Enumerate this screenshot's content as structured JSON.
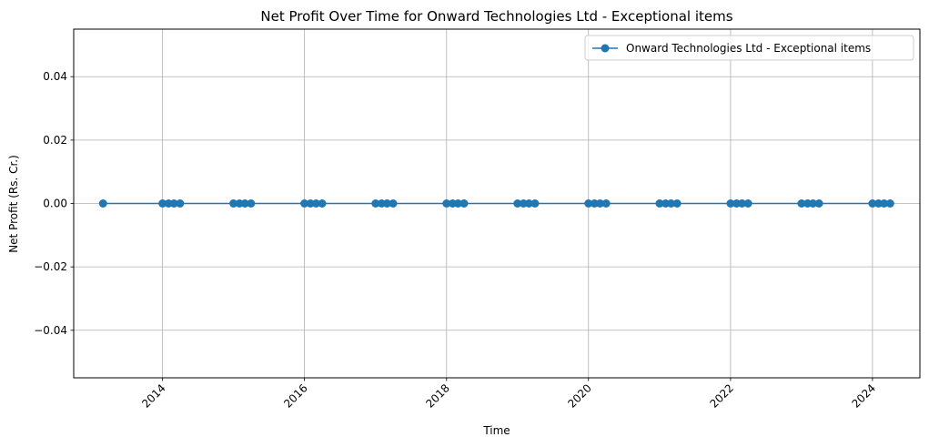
{
  "chart_data": {
    "type": "line",
    "title": "Net Profit Over Time for Onward Technologies Ltd - Exceptional items",
    "xlabel": "Time",
    "ylabel": "Net Profit (Rs. Cr.)",
    "xlim": [
      "2012-10-01",
      "2024-09-01"
    ],
    "ylim": [
      -0.055,
      0.055
    ],
    "x_ticks": [
      "2014",
      "2016",
      "2018",
      "2020",
      "2022",
      "2024"
    ],
    "y_ticks": [
      "−0.04",
      "−0.02",
      "0.00",
      "0.02",
      "0.04"
    ],
    "y_tick_values": [
      -0.04,
      -0.02,
      0.0,
      0.02,
      0.04
    ],
    "grid": true,
    "legend_position": "top-right",
    "color": "#1f77b4",
    "series": [
      {
        "name": "Onward Technologies Ltd - Exceptional items",
        "x": [
          "2013-03-01",
          "2014-01-01",
          "2014-02-01",
          "2014-03-01",
          "2014-04-01",
          "2015-01-01",
          "2015-02-01",
          "2015-03-01",
          "2015-04-01",
          "2016-01-01",
          "2016-02-01",
          "2016-03-01",
          "2016-04-01",
          "2017-01-01",
          "2017-02-01",
          "2017-03-01",
          "2017-04-01",
          "2018-01-01",
          "2018-02-01",
          "2018-03-01",
          "2018-04-01",
          "2019-01-01",
          "2019-02-01",
          "2019-03-01",
          "2019-04-01",
          "2020-01-01",
          "2020-02-01",
          "2020-03-01",
          "2020-04-01",
          "2021-01-01",
          "2021-02-01",
          "2021-03-01",
          "2021-04-01",
          "2022-01-01",
          "2022-02-01",
          "2022-03-01",
          "2022-04-01",
          "2023-01-01",
          "2023-02-01",
          "2023-03-01",
          "2023-04-01",
          "2024-01-01",
          "2024-02-01",
          "2024-03-01",
          "2024-04-01"
        ],
        "values": [
          0,
          0,
          0,
          0,
          0,
          0,
          0,
          0,
          0,
          0,
          0,
          0,
          0,
          0,
          0,
          0,
          0,
          0,
          0,
          0,
          0,
          0,
          0,
          0,
          0,
          0,
          0,
          0,
          0,
          0,
          0,
          0,
          0,
          0,
          0,
          0,
          0,
          0,
          0,
          0,
          0,
          0,
          0,
          0,
          0
        ]
      }
    ]
  }
}
